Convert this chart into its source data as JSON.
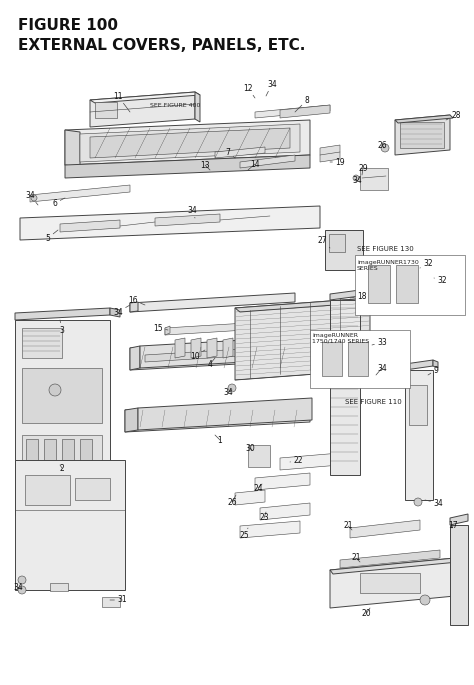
{
  "title_line1": "FIGURE 100",
  "title_line2": "EXTERNAL COVERS, PANELS, ETC.",
  "bg_color": "#ffffff",
  "line_color": "#444444",
  "title_fontsize": 11,
  "label_fontsize": 6,
  "see400": "SEE FIGURE 400",
  "see130": "SEE FIGURE 130",
  "see110": "SEE FIGURE 110",
  "ir1730": "imageRUNNER1730\nSERIES",
  "ir1750": "imageRUNNER\n1750/1740 SERIES"
}
